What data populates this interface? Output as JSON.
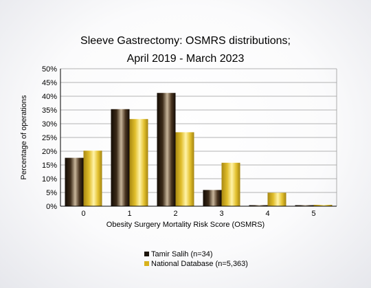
{
  "chart_data": {
    "type": "bar",
    "title_line1": "Sleeve Gastrectomy: OSMRS distributions;",
    "title_line2": "April 2019 - March 2023",
    "xlabel": "Obesity Surgery Mortality Risk Score (OSMRS)",
    "ylabel": "Percentage of operations",
    "categories": [
      "0",
      "1",
      "2",
      "3",
      "4",
      "5"
    ],
    "ylim": [
      0,
      50
    ],
    "yticks": [
      "0%",
      "5%",
      "10%",
      "15%",
      "20%",
      "25%",
      "30%",
      "35%",
      "40%",
      "45%",
      "50%"
    ],
    "grid": true,
    "legend_position": "bottom",
    "series": [
      {
        "name": "Tamir Salih (n=34)",
        "values": [
          17.6,
          35.3,
          41.2,
          5.9,
          0.0,
          0.0
        ],
        "color": "#3a2a1a"
      },
      {
        "name": "National Database (n=5,363)",
        "values": [
          20.2,
          31.7,
          26.9,
          15.8,
          4.9,
          0.6
        ],
        "color": "#d8b21c"
      }
    ]
  }
}
